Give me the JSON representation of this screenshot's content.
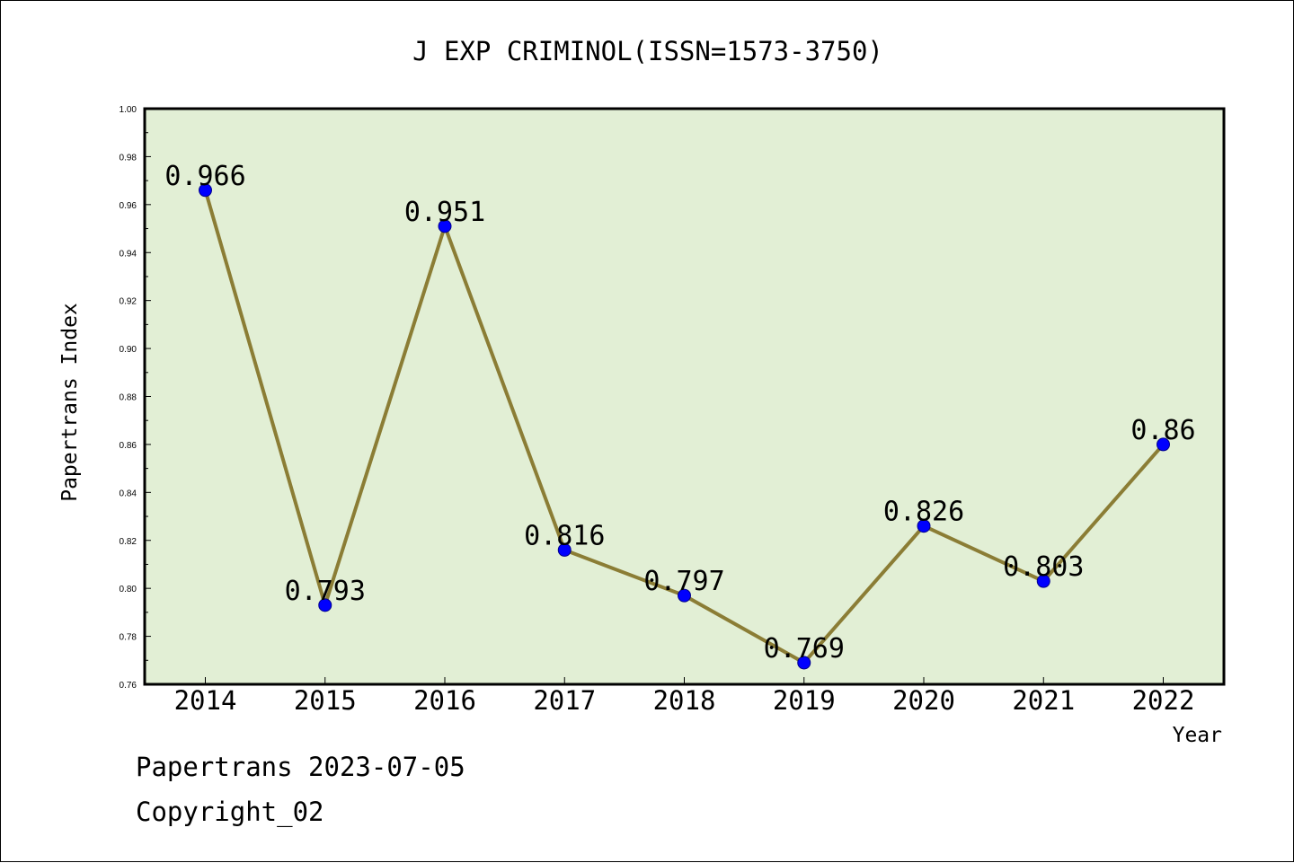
{
  "chart_data": {
    "type": "line",
    "title": "J EXP CRIMINOL(ISSN=1573-3750)",
    "xlabel": "Year",
    "ylabel": "Papertrans Index",
    "categories": [
      "2014",
      "2015",
      "2016",
      "2017",
      "2018",
      "2019",
      "2020",
      "2021",
      "2022"
    ],
    "series": [
      {
        "values": [
          0.966,
          0.793,
          0.951,
          0.816,
          0.797,
          0.769,
          0.826,
          0.803,
          0.86
        ],
        "labels": [
          "0.966",
          "0.793",
          "0.951",
          "0.816",
          "0.797",
          "0.769",
          "0.826",
          "0.803",
          "0.86"
        ]
      }
    ],
    "ylim": [
      0.76,
      1.0
    ],
    "yticks": [
      "0.76",
      "0.78",
      "0.80",
      "0.82",
      "0.84",
      "0.86",
      "0.88",
      "0.90",
      "0.92",
      "0.94",
      "0.96",
      "0.98",
      "1.00"
    ],
    "grid": false,
    "legend": "none",
    "colors": {
      "plot_background": "#e2efd5",
      "line": "#8b7d35",
      "marker": "#0000ff"
    }
  },
  "footer": {
    "line1": "Papertrans 2023-07-05",
    "line2": "Copyright_02"
  }
}
